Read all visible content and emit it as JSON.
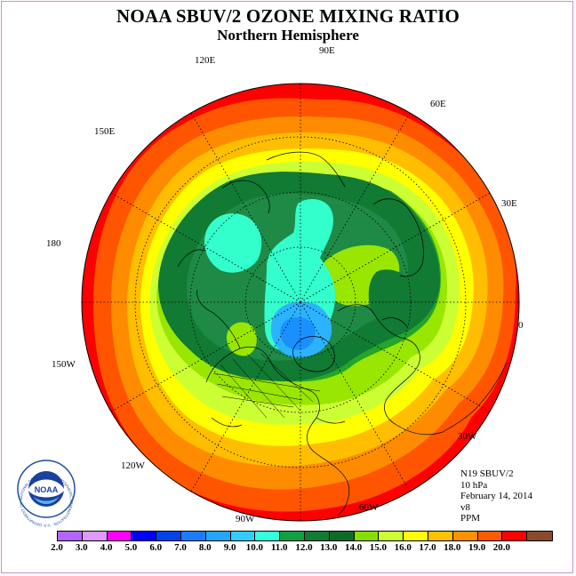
{
  "header": {
    "title": "NOAA SBUV/2 OZONE MIXING RATIO",
    "subtitle": "Northern Hemisphere"
  },
  "map": {
    "longitude_labels": [
      "120E",
      "90E",
      "60E",
      "150E",
      "30E",
      "180",
      "0",
      "150W",
      "30W",
      "120W",
      "60W",
      "90W"
    ],
    "field_colors": {
      "ring_19": "#ff0000",
      "ring_18": "#ff5500",
      "ring_17": "#ff8c00",
      "ring_16": "#ffbe00",
      "ring_15": "#ffff00",
      "ring_14": "#ccff33",
      "ring_13": "#99e600",
      "ring_12": "#22a52a",
      "ring_11": "#117a33",
      "ring_10": "#1e8a46",
      "ring_9": "#33ffcc",
      "ring_8": "#2bb3ff",
      "ring_7": "#1a90ff"
    }
  },
  "info": {
    "lines": [
      "N19 SBUV/2",
      "10 hPa",
      "February 14, 2014",
      "v8",
      "PPM"
    ]
  },
  "colorbar": {
    "labels": [
      "2.0",
      "3.0",
      "4.0",
      "5.0",
      "6.0",
      "7.0",
      "8.0",
      "9.0",
      "10.0",
      "11.0",
      "12.0",
      "13.0",
      "14.0",
      "15.0",
      "16.0",
      "17.0",
      "18.0",
      "19.0",
      "20.0"
    ],
    "colors": [
      "#b266ff",
      "#dd99ff",
      "#ff00ff",
      "#0000ff",
      "#0044ee",
      "#1c7cff",
      "#22a7ff",
      "#33ccff",
      "#33ffdd",
      "#11a044",
      "#117a33",
      "#0d6b2a",
      "#88dd00",
      "#ccff33",
      "#ffff00",
      "#ffc000",
      "#ff9000",
      "#ff5a00",
      "#ff0000",
      "#8b4a2f"
    ]
  },
  "logo": {
    "text": "NOAA",
    "ring_text": "NATIONAL OCEANIC AND ATMOSPHERIC ADMINISTRATION · U.S. DEPARTMENT OF COMMERCE"
  }
}
